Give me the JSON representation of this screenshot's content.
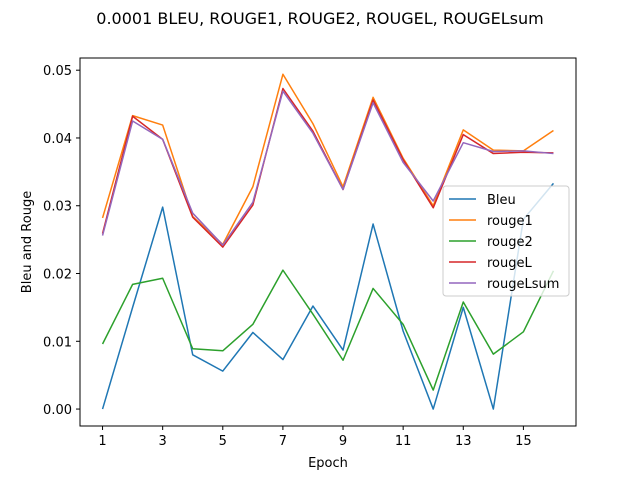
{
  "chart_data": {
    "type": "line",
    "title": "0.0001 BLEU, ROUGE1, ROUGE2, ROUGEL, ROUGELsum",
    "xlabel": "Epoch",
    "ylabel": "Bleu and Rouge",
    "x": [
      1,
      2,
      3,
      4,
      5,
      6,
      7,
      8,
      9,
      10,
      11,
      12,
      13,
      14,
      15,
      16
    ],
    "xticks": [
      1,
      3,
      5,
      7,
      9,
      11,
      13,
      15
    ],
    "yticks": [
      0.0,
      0.01,
      0.02,
      0.03,
      0.04,
      0.05
    ],
    "ytick_labels": [
      "0.00",
      "0.01",
      "0.02",
      "0.03",
      "0.04",
      "0.05"
    ],
    "xlim": [
      0.25,
      16.75
    ],
    "ylim": [
      -0.0025,
      0.0518
    ],
    "grid": false,
    "legend_position": "center-right",
    "series": [
      {
        "name": "Bleu",
        "color": "#1f77b4",
        "values": [
          0.0,
          0.015,
          0.0298,
          0.008,
          0.0056,
          0.0113,
          0.0073,
          0.0152,
          0.0087,
          0.0273,
          0.0115,
          0.0,
          0.015,
          0.0,
          0.028,
          0.0333
        ]
      },
      {
        "name": "rouge1",
        "color": "#ff7f0e",
        "values": [
          0.0282,
          0.0433,
          0.0419,
          0.0284,
          0.0243,
          0.0328,
          0.0494,
          0.0421,
          0.0328,
          0.046,
          0.037,
          0.03,
          0.0412,
          0.0382,
          0.0381,
          0.0411
        ]
      },
      {
        "name": "rouge2",
        "color": "#2ca02c",
        "values": [
          0.0096,
          0.0184,
          0.0193,
          0.0089,
          0.0086,
          0.0125,
          0.0205,
          0.014,
          0.0072,
          0.0178,
          0.0125,
          0.0028,
          0.0158,
          0.0081,
          0.0114,
          0.0204
        ]
      },
      {
        "name": "rougeL",
        "color": "#d62728",
        "values": [
          0.0259,
          0.0432,
          0.0398,
          0.0283,
          0.0239,
          0.0301,
          0.0473,
          0.041,
          0.0324,
          0.0456,
          0.0368,
          0.0297,
          0.0405,
          0.0377,
          0.0379,
          0.0378
        ]
      },
      {
        "name": "rougeLsum",
        "color": "#9467bd",
        "values": [
          0.0256,
          0.0425,
          0.0398,
          0.0289,
          0.0242,
          0.0305,
          0.0469,
          0.0407,
          0.0324,
          0.0452,
          0.0364,
          0.0307,
          0.0393,
          0.038,
          0.0381,
          0.0377
        ]
      }
    ]
  }
}
